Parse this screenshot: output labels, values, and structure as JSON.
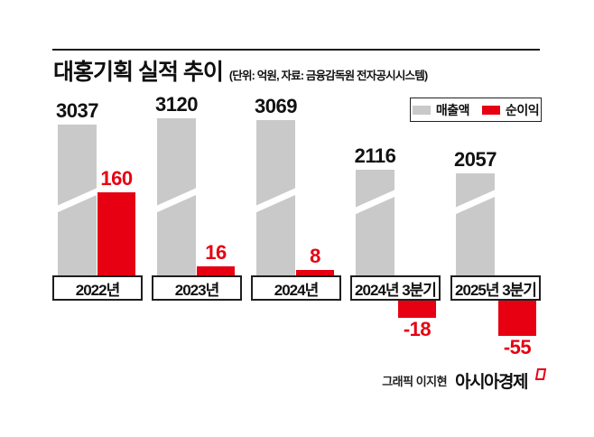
{
  "header": {
    "title": "대홍기획 실적 추이",
    "subtitle": "(단위: 억원, 자료: 금융감독원 전자공시시스템)"
  },
  "legend": {
    "revenue_label": "매출액",
    "profit_label": "순이익",
    "revenue_color": "#c9c9c9",
    "profit_color": "#e60012"
  },
  "chart_data": {
    "type": "bar",
    "title": "대홍기획 실적 추이",
    "unit_note": "(단위: 억원, 자료: 금융감독원 전자공시시스템)",
    "legend_position": "top-right",
    "grid": false,
    "categories": [
      "2022년",
      "2023년",
      "2024년",
      "2024년 3분기",
      "2025년 3분기"
    ],
    "series": [
      {
        "name": "매출액",
        "color": "#c9c9c9",
        "values": [
          3037,
          3120,
          3069,
          2116,
          2057
        ],
        "style": "truncated bars with white break slash"
      },
      {
        "name": "순이익",
        "color": "#e60012",
        "values": [
          160,
          16,
          8,
          -18,
          -55
        ]
      }
    ],
    "groups": [
      {
        "period": "2022년",
        "revenue_label": "3037",
        "profit_label": "160"
      },
      {
        "period": "2023년",
        "revenue_label": "3120",
        "profit_label": "16"
      },
      {
        "period": "2024년",
        "revenue_label": "3069",
        "profit_label": "8"
      },
      {
        "period": "2024년 3분기",
        "revenue_label": "2116",
        "profit_label": "-18"
      },
      {
        "period": "2025년 3분기",
        "revenue_label": "2057",
        "profit_label": "-55"
      }
    ]
  },
  "credit": {
    "graphic": "그래픽 이지현",
    "brand": "아시아경제"
  }
}
